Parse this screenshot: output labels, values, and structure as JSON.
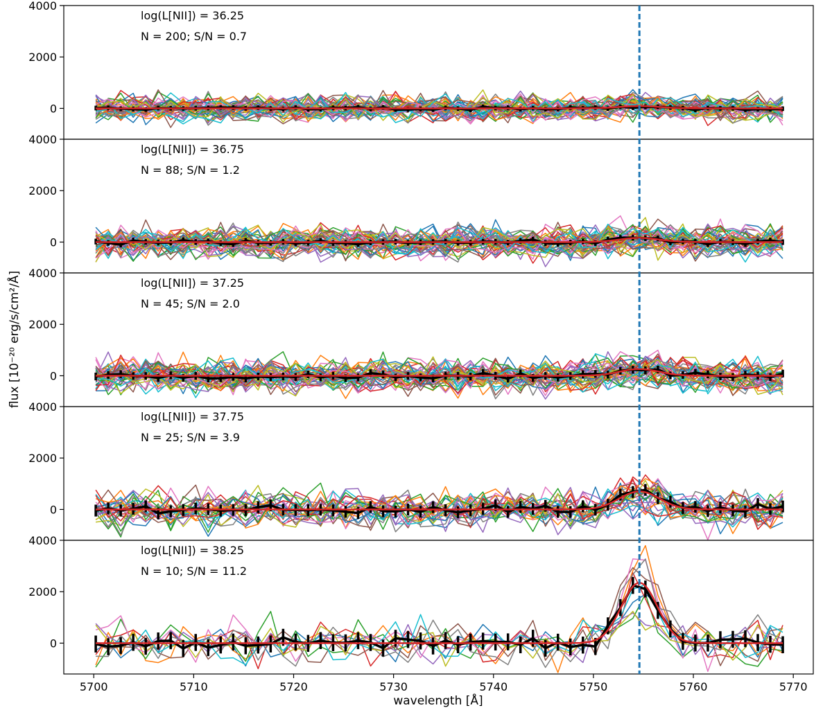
{
  "chart_data": {
    "type": "line",
    "xlabel": "wavelength [Å]",
    "ylabel": "flux [10⁻²⁰ erg/s/cm²/Å]",
    "xlim": [
      5697,
      5772
    ],
    "ylim": [
      -1200,
      4000
    ],
    "x_ticks": [
      5700,
      5710,
      5720,
      5730,
      5740,
      5750,
      5760,
      5770
    ],
    "y_ticks": [
      0,
      2000,
      4000
    ],
    "reference_line": {
      "wavelength": 5754.6,
      "style": "dashed",
      "color": "#1f77b4"
    },
    "series_colors": [
      "#1f77b4",
      "#ff7f0e",
      "#2ca02c",
      "#d62728",
      "#9467bd",
      "#8c564b",
      "#e377c2",
      "#7f7f7f",
      "#bcbd22",
      "#17becf"
    ],
    "stack_color": "#000000",
    "model_color": "#d62728",
    "wavelength_grid": {
      "start": 5700.2,
      "step": 1.25,
      "count": 56
    },
    "panels": [
      {
        "label": "log(L[NII]) = 36.25",
        "counts": "N = 200; S/N = 0.7",
        "n_spectra": 200,
        "snr": 0.7,
        "line_center": 5754.6,
        "line_peak": 90,
        "line_sigma": 2.0,
        "spectrum_scatter": 260,
        "stack_errorbar": 90
      },
      {
        "label": "log(L[NII]) = 36.75",
        "counts": "N = 88; S/N = 1.2",
        "n_spectra": 88,
        "snr": 1.2,
        "line_center": 5754.6,
        "line_peak": 160,
        "line_sigma": 2.0,
        "spectrum_scatter": 320,
        "stack_errorbar": 110
      },
      {
        "label": "log(L[NII]) = 37.25",
        "counts": "N = 45; S/N = 2.0",
        "n_spectra": 45,
        "snr": 2.0,
        "line_center": 5754.6,
        "line_peak": 260,
        "line_sigma": 2.0,
        "spectrum_scatter": 330,
        "stack_errorbar": 150
      },
      {
        "label": "log(L[NII]) = 37.75",
        "counts": "N = 25; S/N = 3.9",
        "n_spectra": 25,
        "snr": 3.9,
        "line_center": 5754.6,
        "line_peak": 700,
        "line_sigma": 2.0,
        "spectrum_scatter": 380,
        "stack_errorbar": 230
      },
      {
        "label": "log(L[NII]) = 38.25",
        "counts": "N = 10; S/N = 11.2",
        "n_spectra": 10,
        "snr": 11.2,
        "line_center": 5754.6,
        "line_peak": 2350,
        "line_sigma": 1.8,
        "spectrum_scatter": 420,
        "stack_errorbar": 330
      }
    ]
  }
}
